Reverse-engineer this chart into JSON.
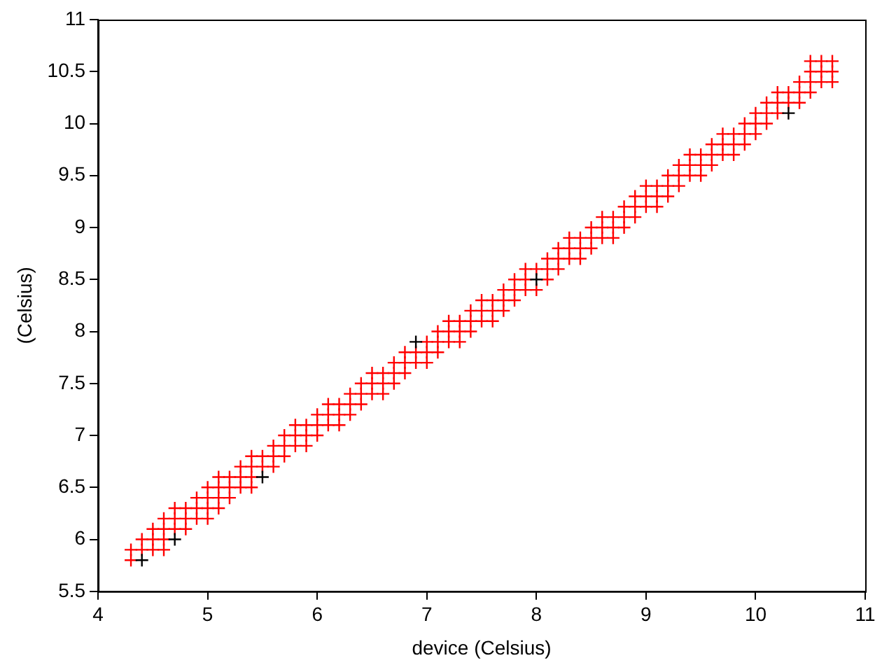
{
  "chart_data": {
    "type": "scatter",
    "xlabel": "device (Celsius)",
    "ylabel": "(Celsius)",
    "xlim": [
      4,
      11
    ],
    "xticks": [
      4,
      5,
      6,
      7,
      8,
      9,
      10,
      11
    ],
    "ylim": [
      5.5,
      11
    ],
    "yticks": [
      5.5,
      6,
      6.5,
      7,
      7.5,
      8,
      8.5,
      9,
      9.5,
      10,
      10.5,
      11
    ],
    "grid": false,
    "legend": false,
    "marker": "cross",
    "series": [
      {
        "color": "#000000",
        "x": [
          4.4,
          4.7,
          5.5,
          6.9,
          8.0,
          10.3
        ],
        "values": [
          5.8,
          6.0,
          6.6,
          7.9,
          8.5,
          10.1
        ]
      },
      {
        "color": "#ff0000",
        "x": [
          4.3,
          4.3,
          4.4,
          4.4,
          4.5,
          4.5,
          4.5,
          4.6,
          4.6,
          4.6,
          4.6,
          4.7,
          4.7,
          4.7,
          4.8,
          4.8,
          4.8,
          4.9,
          4.9,
          4.9,
          5.0,
          5.0,
          5.0,
          5.0,
          5.1,
          5.1,
          5.1,
          5.1,
          5.2,
          5.2,
          5.2,
          5.3,
          5.3,
          5.3,
          5.4,
          5.4,
          5.4,
          5.4,
          5.5,
          5.5,
          5.6,
          5.6,
          5.6,
          5.7,
          5.7,
          5.7,
          5.8,
          5.8,
          5.8,
          5.9,
          5.9,
          5.9,
          6.0,
          6.0,
          6.0,
          6.1,
          6.1,
          6.1,
          6.2,
          6.2,
          6.2,
          6.3,
          6.3,
          6.3,
          6.4,
          6.4,
          6.4,
          6.5,
          6.5,
          6.5,
          6.6,
          6.6,
          6.6,
          6.7,
          6.7,
          6.7,
          6.8,
          6.8,
          6.8,
          6.9,
          6.9,
          7.0,
          7.0,
          7.0,
          7.1,
          7.1,
          7.1,
          7.2,
          7.2,
          7.2,
          7.3,
          7.3,
          7.3,
          7.4,
          7.4,
          7.4,
          7.5,
          7.5,
          7.5,
          7.6,
          7.6,
          7.6,
          7.7,
          7.7,
          7.7,
          7.8,
          7.8,
          7.8,
          7.9,
          7.9,
          7.9,
          8.0,
          8.0,
          8.1,
          8.1,
          8.1,
          8.2,
          8.2,
          8.2,
          8.3,
          8.3,
          8.3,
          8.4,
          8.4,
          8.4,
          8.5,
          8.5,
          8.5,
          8.6,
          8.6,
          8.6,
          8.7,
          8.7,
          8.7,
          8.8,
          8.8,
          8.8,
          8.9,
          8.9,
          8.9,
          9.0,
          9.0,
          9.0,
          9.1,
          9.1,
          9.1,
          9.2,
          9.2,
          9.2,
          9.3,
          9.3,
          9.3,
          9.4,
          9.4,
          9.4,
          9.5,
          9.5,
          9.5,
          9.6,
          9.6,
          9.6,
          9.7,
          9.7,
          9.7,
          9.8,
          9.8,
          9.8,
          9.9,
          9.9,
          9.9,
          10.0,
          10.0,
          10.0,
          10.1,
          10.1,
          10.1,
          10.2,
          10.2,
          10.2,
          10.3,
          10.3,
          10.4,
          10.4,
          10.4,
          10.5,
          10.5,
          10.5,
          10.5,
          10.6,
          10.6,
          10.6,
          10.7,
          10.7,
          10.7
        ],
        "values": [
          5.8,
          5.9,
          5.9,
          6.0,
          5.9,
          6.0,
          6.1,
          5.9,
          6.0,
          6.1,
          6.2,
          6.1,
          6.2,
          6.3,
          6.1,
          6.2,
          6.3,
          6.2,
          6.3,
          6.4,
          6.2,
          6.3,
          6.4,
          6.5,
          6.3,
          6.4,
          6.5,
          6.6,
          6.4,
          6.5,
          6.6,
          6.5,
          6.6,
          6.7,
          6.5,
          6.6,
          6.7,
          6.8,
          6.7,
          6.8,
          6.7,
          6.8,
          6.9,
          6.8,
          6.9,
          7.0,
          6.9,
          7.0,
          7.1,
          6.9,
          7.0,
          7.1,
          7.0,
          7.1,
          7.2,
          7.1,
          7.2,
          7.3,
          7.1,
          7.2,
          7.3,
          7.2,
          7.3,
          7.4,
          7.3,
          7.4,
          7.5,
          7.4,
          7.5,
          7.6,
          7.4,
          7.5,
          7.6,
          7.5,
          7.6,
          7.7,
          7.6,
          7.7,
          7.8,
          7.7,
          7.8,
          7.7,
          7.8,
          7.9,
          7.8,
          7.9,
          8.0,
          7.9,
          8.0,
          8.1,
          7.9,
          8.0,
          8.1,
          8.0,
          8.1,
          8.2,
          8.1,
          8.2,
          8.3,
          8.1,
          8.2,
          8.3,
          8.2,
          8.3,
          8.4,
          8.3,
          8.4,
          8.5,
          8.4,
          8.5,
          8.6,
          8.4,
          8.6,
          8.5,
          8.6,
          8.7,
          8.6,
          8.7,
          8.8,
          8.7,
          8.8,
          8.9,
          8.7,
          8.8,
          8.9,
          8.8,
          8.9,
          9.0,
          8.9,
          9.0,
          9.1,
          8.9,
          9.0,
          9.1,
          9.0,
          9.1,
          9.2,
          9.1,
          9.2,
          9.3,
          9.2,
          9.3,
          9.4,
          9.2,
          9.3,
          9.4,
          9.3,
          9.4,
          9.5,
          9.4,
          9.5,
          9.6,
          9.5,
          9.6,
          9.7,
          9.5,
          9.6,
          9.7,
          9.6,
          9.7,
          9.8,
          9.7,
          9.8,
          9.9,
          9.7,
          9.8,
          9.9,
          9.8,
          9.9,
          10.0,
          9.9,
          10.0,
          10.1,
          10.0,
          10.1,
          10.2,
          10.1,
          10.2,
          10.3,
          10.2,
          10.3,
          10.2,
          10.3,
          10.4,
          10.3,
          10.4,
          10.5,
          10.6,
          10.4,
          10.5,
          10.6,
          10.4,
          10.5,
          10.6
        ]
      }
    ]
  }
}
